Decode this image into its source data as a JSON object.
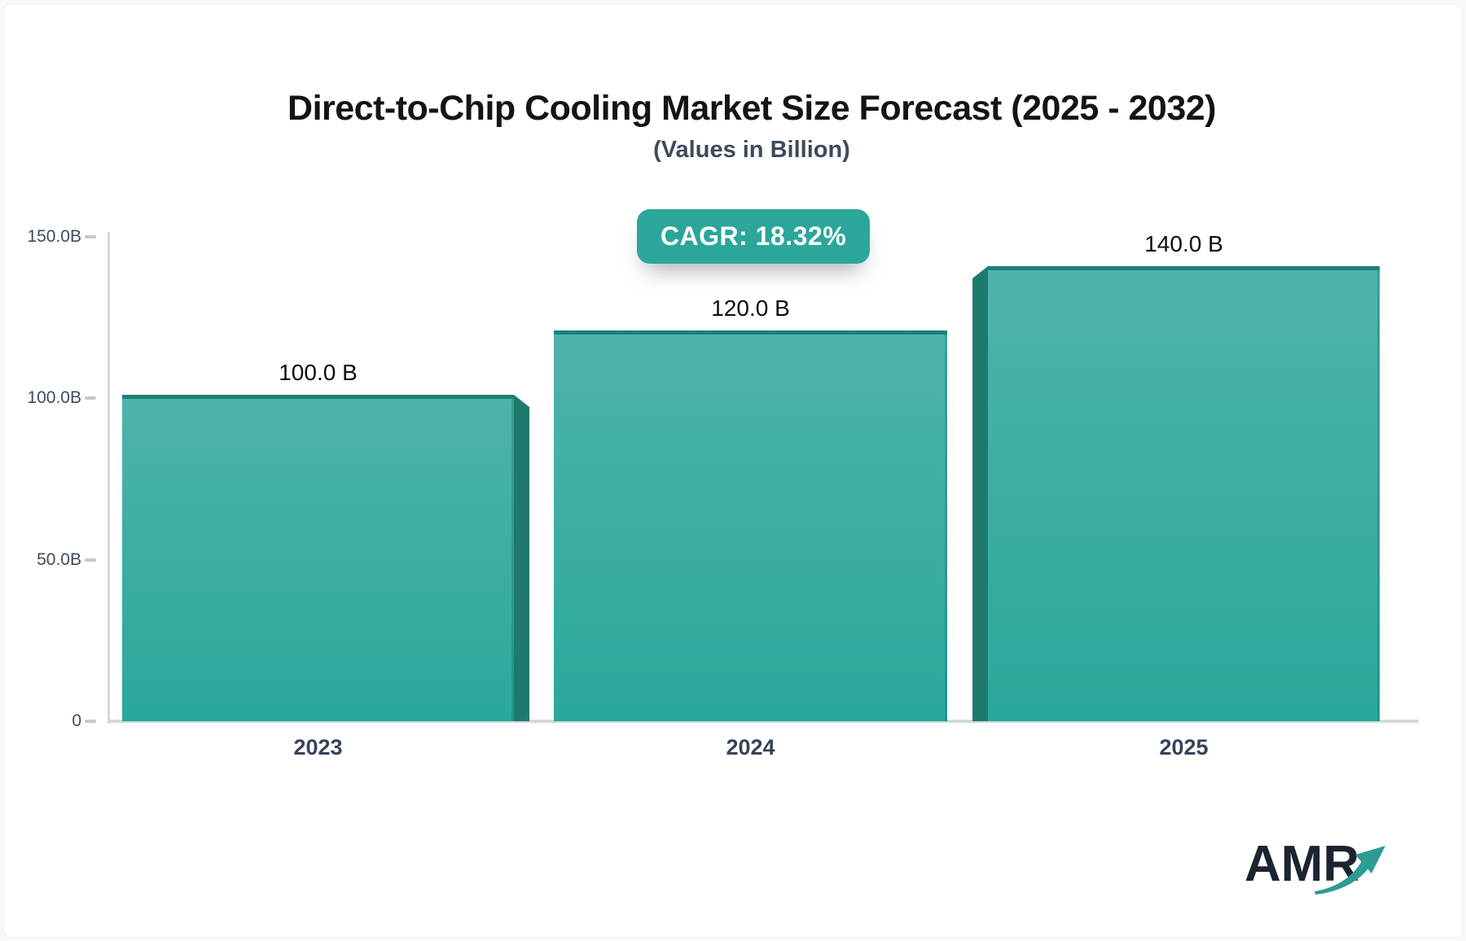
{
  "header": {
    "title": "Direct-to-Chip Cooling Market Size Forecast (2025 - 2032)",
    "subtitle": "(Values in Billion)"
  },
  "badge": {
    "label": "CAGR: 18.32%"
  },
  "logo": {
    "text": "AMR",
    "icon": "growth-arrow-icon"
  },
  "colors": {
    "accent_teal": "#2ba69a",
    "bar_gradient_top": "#4fb3aa",
    "bar_gradient_bottom": "#2aa89b",
    "bar_top_cap": "#1a8173",
    "bar_side_shadow": "#1f7a6e",
    "axis_line": "#d4d8dd",
    "tick_mark": "#c2c8cf",
    "axis_text": "#3f4b5e",
    "category_text": "#36435a",
    "value_text": "#0d0d0d",
    "title_text": "#141414",
    "subtitle_text": "#3d4a5c",
    "logo_navy": "#1b2531",
    "logo_arrow_teal": "#2d9c92"
  },
  "chart_data": {
    "type": "bar",
    "title": "Direct-to-Chip Cooling Market Size Forecast (2025 - 2032)",
    "subtitle": "(Values in Billion)",
    "unit": "Billion",
    "cagr_annotation": "CAGR: 18.32%",
    "categories": [
      "2023",
      "2024",
      "2025"
    ],
    "values": [
      100,
      120,
      140
    ],
    "value_labels": [
      "100.0 B",
      "120.0 B",
      "140.0 B"
    ],
    "y_ticks": [
      {
        "label": "150.0B",
        "value": 150
      },
      {
        "label": "100.0B",
        "value": 100
      },
      {
        "label": "50.0B",
        "value": 50
      },
      {
        "label": "0",
        "value": 0
      }
    ],
    "ylim": [
      0,
      150
    ],
    "grid": false,
    "legend": false,
    "bar_style": "3d-beveled-gradient"
  }
}
